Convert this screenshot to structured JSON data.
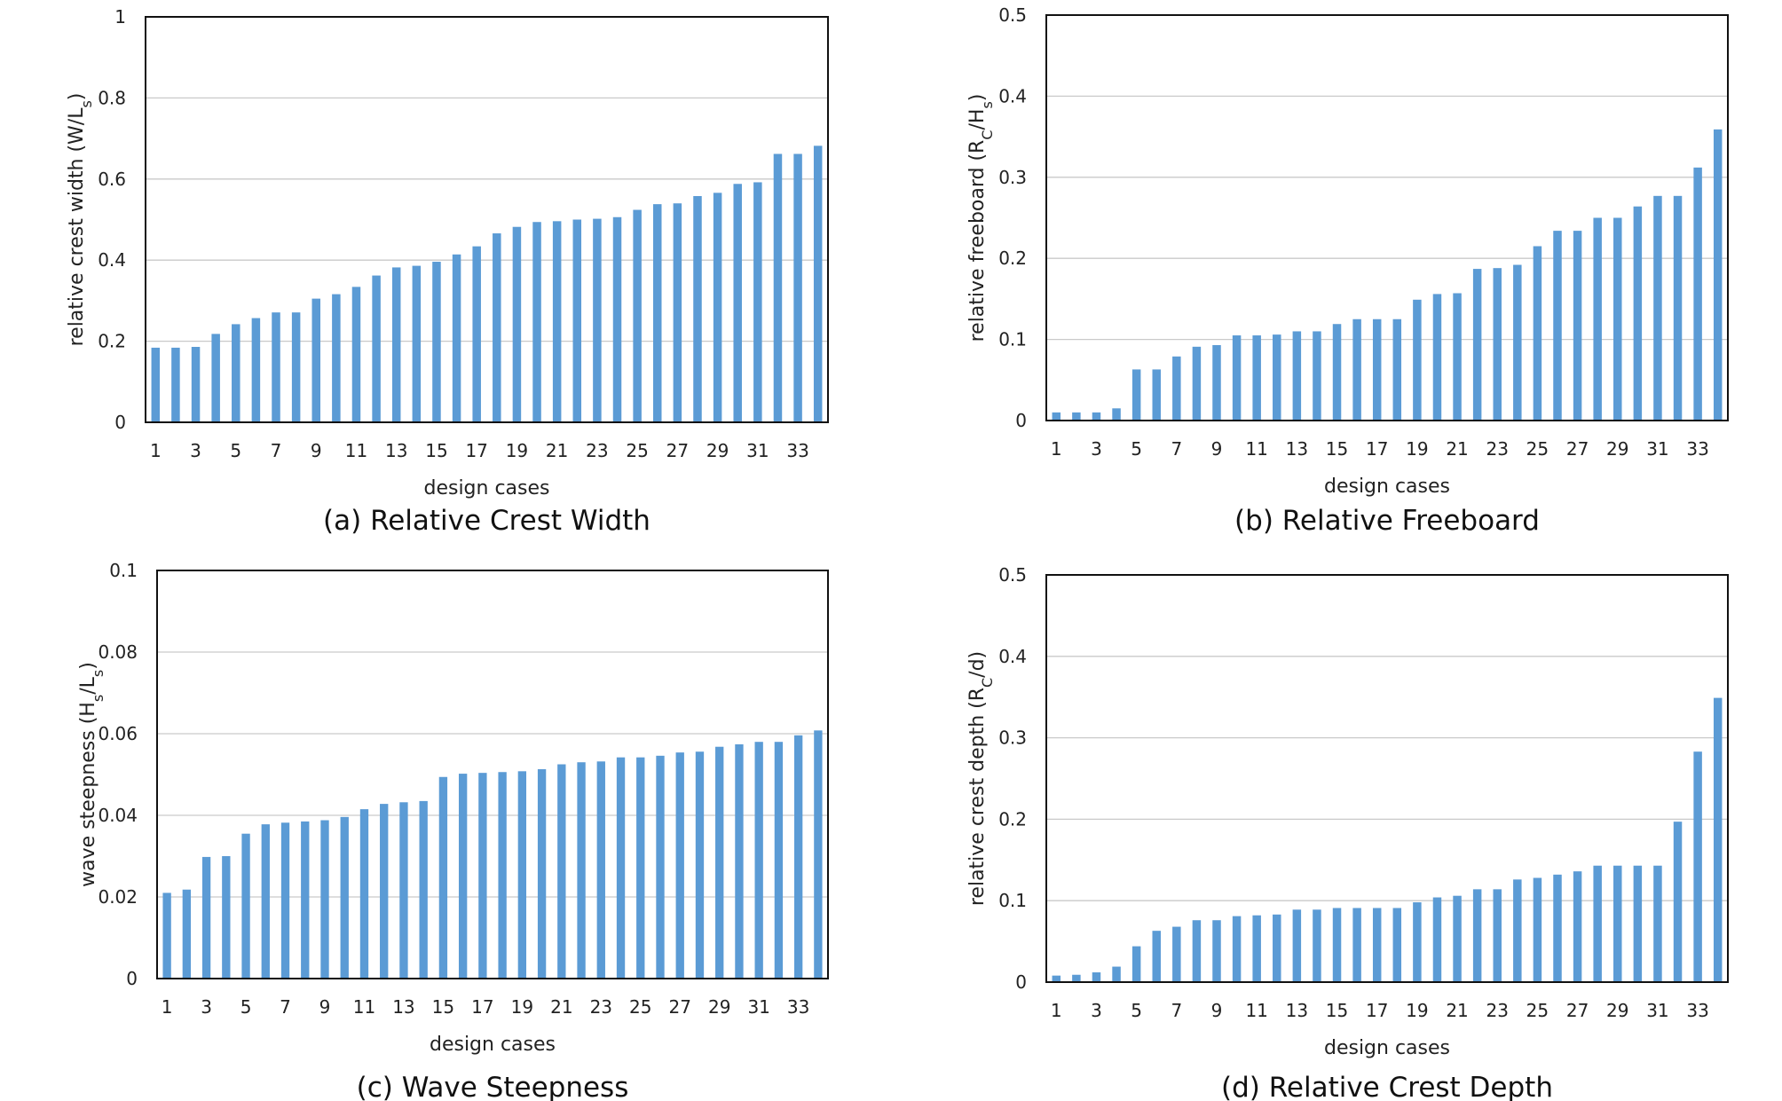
{
  "bar_color": "#5b9bd5",
  "chart_data": [
    {
      "type": "bar",
      "caption": "(a) Relative Crest Width",
      "xlabel": "design cases",
      "ylabel": [
        "relative crest width (W/L",
        "s",
        ")"
      ],
      "ylim": [
        0,
        1
      ],
      "ytick_values": [
        0,
        0.2,
        0.4,
        0.6,
        0.8,
        1
      ],
      "ytick_labels": [
        "0",
        "0.2",
        "0.4",
        "0.6",
        "0.8",
        "1"
      ],
      "grid": "horizontal",
      "categories": [
        1,
        2,
        3,
        4,
        5,
        6,
        7,
        8,
        9,
        10,
        11,
        12,
        13,
        14,
        15,
        16,
        17,
        18,
        19,
        20,
        21,
        22,
        23,
        24,
        25,
        26,
        27,
        28,
        29,
        30,
        31,
        32,
        33,
        34
      ],
      "x_tick_labels": [
        "1",
        "3",
        "5",
        "7",
        "9",
        "11",
        "13",
        "15",
        "17",
        "19",
        "21",
        "23",
        "25",
        "27",
        "29",
        "31",
        "33"
      ],
      "values": [
        0.184,
        0.184,
        0.186,
        0.218,
        0.242,
        0.257,
        0.271,
        0.271,
        0.305,
        0.316,
        0.334,
        0.362,
        0.382,
        0.386,
        0.396,
        0.414,
        0.434,
        0.466,
        0.482,
        0.494,
        0.496,
        0.5,
        0.502,
        0.506,
        0.524,
        0.538,
        0.54,
        0.558,
        0.566,
        0.588,
        0.592,
        0.662,
        0.662,
        0.682
      ]
    },
    {
      "type": "bar",
      "caption": "(b) Relative Freeboard",
      "xlabel": "design cases",
      "ylabel": [
        "relative freeboard (R",
        "C",
        "/H",
        "s",
        ")"
      ],
      "ylim": [
        0,
        0.5
      ],
      "ytick_values": [
        0,
        0.1,
        0.2,
        0.3,
        0.4,
        0.5
      ],
      "ytick_labels": [
        "0",
        "0.1",
        "0.2",
        "0.3",
        "0.4",
        "0.5"
      ],
      "grid": "horizontal",
      "categories": [
        1,
        2,
        3,
        4,
        5,
        6,
        7,
        8,
        9,
        10,
        11,
        12,
        13,
        14,
        15,
        16,
        17,
        18,
        19,
        20,
        21,
        22,
        23,
        24,
        25,
        26,
        27,
        28,
        29,
        30,
        31,
        32,
        33,
        34
      ],
      "x_tick_labels": [
        "1",
        "3",
        "5",
        "7",
        "9",
        "11",
        "13",
        "15",
        "17",
        "19",
        "21",
        "23",
        "25",
        "27",
        "29",
        "31",
        "33"
      ],
      "values": [
        0.01,
        0.01,
        0.01,
        0.015,
        0.063,
        0.063,
        0.079,
        0.091,
        0.093,
        0.105,
        0.105,
        0.106,
        0.11,
        0.11,
        0.119,
        0.125,
        0.125,
        0.125,
        0.149,
        0.156,
        0.157,
        0.187,
        0.188,
        0.192,
        0.215,
        0.234,
        0.234,
        0.25,
        0.25,
        0.264,
        0.277,
        0.277,
        0.312,
        0.359
      ]
    },
    {
      "type": "bar",
      "caption": "(c) Wave Steepness",
      "xlabel": "design cases",
      "ylabel": [
        "wave steepness (H",
        "s",
        "/L",
        "s",
        ")"
      ],
      "ylim": [
        0,
        0.1
      ],
      "ytick_values": [
        0,
        0.02,
        0.04,
        0.06,
        0.08,
        0.1
      ],
      "ytick_labels": [
        "0",
        "0.02",
        "0.04",
        "0.06",
        "0.08",
        "0.1"
      ],
      "grid": "horizontal",
      "categories": [
        1,
        2,
        3,
        4,
        5,
        6,
        7,
        8,
        9,
        10,
        11,
        12,
        13,
        14,
        15,
        16,
        17,
        18,
        19,
        20,
        21,
        22,
        23,
        24,
        25,
        26,
        27,
        28,
        29,
        30,
        31,
        32,
        33,
        34
      ],
      "x_tick_labels": [
        "1",
        "3",
        "5",
        "7",
        "9",
        "11",
        "13",
        "15",
        "17",
        "19",
        "21",
        "23",
        "25",
        "27",
        "29",
        "31",
        "33"
      ],
      "values": [
        0.021,
        0.0218,
        0.0298,
        0.03,
        0.0355,
        0.0378,
        0.0382,
        0.0385,
        0.0388,
        0.0396,
        0.0415,
        0.0428,
        0.0432,
        0.0435,
        0.0494,
        0.0502,
        0.0504,
        0.0506,
        0.0508,
        0.0513,
        0.0525,
        0.053,
        0.0532,
        0.0542,
        0.0542,
        0.0546,
        0.0554,
        0.0556,
        0.0568,
        0.0574,
        0.058,
        0.058,
        0.0596,
        0.0608
      ]
    },
    {
      "type": "bar",
      "caption": "(d) Relative Crest Depth",
      "xlabel": "design cases",
      "ylabel": [
        "relative crest depth (R",
        "C",
        "/d)"
      ],
      "ylim": [
        0,
        0.5
      ],
      "ytick_values": [
        0,
        0.1,
        0.2,
        0.3,
        0.4,
        0.5
      ],
      "ytick_labels": [
        "0",
        "0.1",
        "0.2",
        "0.3",
        "0.4",
        "0.5"
      ],
      "grid": "horizontal",
      "categories": [
        1,
        2,
        3,
        4,
        5,
        6,
        7,
        8,
        9,
        10,
        11,
        12,
        13,
        14,
        15,
        16,
        17,
        18,
        19,
        20,
        21,
        22,
        23,
        24,
        25,
        26,
        27,
        28,
        29,
        30,
        31,
        32,
        33,
        34
      ],
      "x_tick_labels": [
        "1",
        "3",
        "5",
        "7",
        "9",
        "11",
        "13",
        "15",
        "17",
        "19",
        "21",
        "23",
        "25",
        "27",
        "29",
        "31",
        "33"
      ],
      "values": [
        0.008,
        0.009,
        0.012,
        0.019,
        0.044,
        0.063,
        0.068,
        0.076,
        0.076,
        0.081,
        0.082,
        0.083,
        0.089,
        0.089,
        0.091,
        0.091,
        0.091,
        0.091,
        0.098,
        0.104,
        0.106,
        0.114,
        0.114,
        0.126,
        0.128,
        0.132,
        0.136,
        0.143,
        0.143,
        0.143,
        0.143,
        0.197,
        0.283,
        0.349
      ]
    }
  ]
}
